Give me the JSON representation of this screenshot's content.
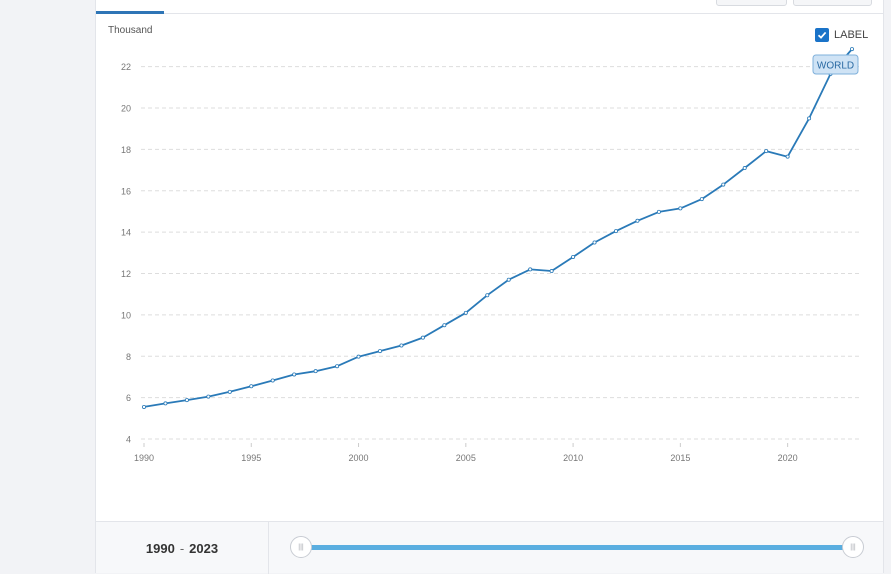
{
  "chart_data": {
    "type": "line",
    "y_unit_label": "Thousand",
    "x_ticks": [
      1990,
      1995,
      2000,
      2005,
      2010,
      2015,
      2020
    ],
    "y_ticks": [
      4,
      6,
      8,
      10,
      12,
      14,
      16,
      18,
      20,
      22
    ],
    "xlim": [
      1990,
      2023
    ],
    "ylim": [
      4,
      23
    ],
    "grid": true,
    "series": [
      {
        "name": "WORLD",
        "color": "#2a7ab8",
        "x": [
          1990,
          1991,
          1992,
          1993,
          1994,
          1995,
          1996,
          1997,
          1998,
          1999,
          2000,
          2001,
          2002,
          2003,
          2004,
          2005,
          2006,
          2007,
          2008,
          2009,
          2010,
          2011,
          2012,
          2013,
          2014,
          2015,
          2016,
          2017,
          2018,
          2019,
          2020,
          2021,
          2022,
          2023
        ],
        "y": [
          5.55,
          5.72,
          5.88,
          6.05,
          6.28,
          6.55,
          6.83,
          7.12,
          7.28,
          7.52,
          7.98,
          8.25,
          8.52,
          8.9,
          9.5,
          10.1,
          10.95,
          11.7,
          12.2,
          12.12,
          12.8,
          13.5,
          14.05,
          14.55,
          14.98,
          15.15,
          15.6,
          16.3,
          17.1,
          17.92,
          17.65,
          19.5,
          21.65,
          22.85
        ]
      }
    ]
  },
  "label_toggle": {
    "text": "LABEL",
    "checked": true
  },
  "series_badge": "WORLD",
  "footer": {
    "start_year": "1990",
    "separator": "-",
    "end_year": "2023"
  },
  "slider": {
    "handle_glyph": "|||",
    "range_start": 1990,
    "range_end": 2023
  }
}
